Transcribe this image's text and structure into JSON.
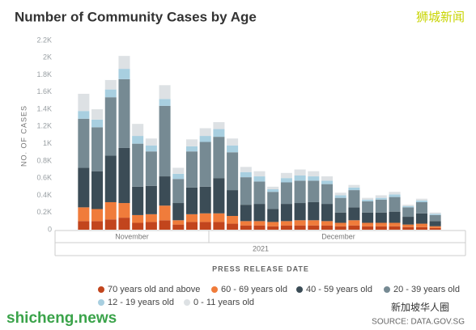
{
  "chart_data": {
    "type": "stacked_bar",
    "title": "Number of Community Cases by Age",
    "watermark_top": "狮城新闻",
    "y_label": "NO. OF CASES",
    "x_label": "PRESS RELEASE DATE",
    "month_labels": [
      "November",
      "December"
    ],
    "year_label": "2021",
    "watermark_bottom": "shicheng.news",
    "wechat_label": "新加坡华人圈",
    "source": "SOURCE: DATA.GOV.SG",
    "categories": [
      null,
      null,
      null,
      null,
      null,
      null,
      null,
      null,
      null,
      null,
      null,
      null,
      null,
      null,
      null,
      null,
      null,
      null,
      null,
      null,
      null,
      null,
      null,
      null,
      null,
      null,
      null
    ],
    "ylim": [
      0,
      2200
    ],
    "yticks": [
      0,
      {
        "value": 200,
        "label": "0.2K"
      },
      {
        "value": 400,
        "label": "0.4K"
      },
      {
        "value": 600,
        "label": "0.6K"
      },
      {
        "value": 800,
        "label": "0.8K"
      },
      {
        "value": 1000,
        "label": "1K"
      },
      {
        "value": 1200,
        "label": "1.2K"
      },
      {
        "value": 1400,
        "label": "1.4K"
      },
      {
        "value": 1600,
        "label": "1.6K"
      },
      {
        "value": 1800,
        "label": "1.8K"
      },
      {
        "value": 2000,
        "label": "2K"
      },
      {
        "value": 2200,
        "label": "2.2K"
      }
    ],
    "grid": false,
    "series": [
      {
        "name": "70 years old and above",
        "color": "#c2451d",
        "values": [
          100,
          100,
          120,
          140,
          80,
          90,
          110,
          60,
          90,
          90,
          90,
          70,
          50,
          50,
          40,
          50,
          50,
          50,
          50,
          40,
          50,
          40,
          40,
          40,
          30,
          30,
          20
        ]
      },
      {
        "name": "60 - 69 years old",
        "color": "#f07c3b",
        "values": [
          160,
          140,
          200,
          170,
          90,
          90,
          170,
          50,
          90,
          100,
          100,
          90,
          50,
          50,
          50,
          50,
          60,
          60,
          50,
          40,
          60,
          40,
          40,
          40,
          30,
          40,
          20
        ]
      },
      {
        "name": "40 - 59 years old",
        "color": "#3b4c56",
        "values": [
          460,
          440,
          540,
          640,
          330,
          330,
          340,
          200,
          310,
          310,
          410,
          300,
          190,
          200,
          150,
          200,
          200,
          210,
          200,
          120,
          150,
          120,
          120,
          130,
          90,
          120,
          60
        ]
      },
      {
        "name": "20 - 39 years old",
        "color": "#768a93",
        "values": [
          570,
          510,
          680,
          800,
          500,
          400,
          820,
          280,
          420,
          520,
          480,
          440,
          320,
          260,
          200,
          250,
          260,
          250,
          230,
          170,
          200,
          130,
          150,
          170,
          110,
          130,
          70
        ]
      },
      {
        "name": "12 - 19 years old",
        "color": "#a8cfe0",
        "values": [
          90,
          90,
          90,
          120,
          90,
          70,
          80,
          60,
          60,
          70,
          90,
          80,
          60,
          60,
          30,
          50,
          60,
          50,
          40,
          30,
          30,
          20,
          20,
          30,
          15,
          20,
          15
        ]
      },
      {
        "name": "0 - 11 years old",
        "color": "#dde1e4",
        "values": [
          200,
          120,
          110,
          150,
          140,
          80,
          160,
          70,
          80,
          90,
          80,
          80,
          60,
          60,
          30,
          60,
          70,
          60,
          50,
          30,
          30,
          20,
          30,
          30,
          15,
          20,
          15
        ]
      }
    ]
  }
}
